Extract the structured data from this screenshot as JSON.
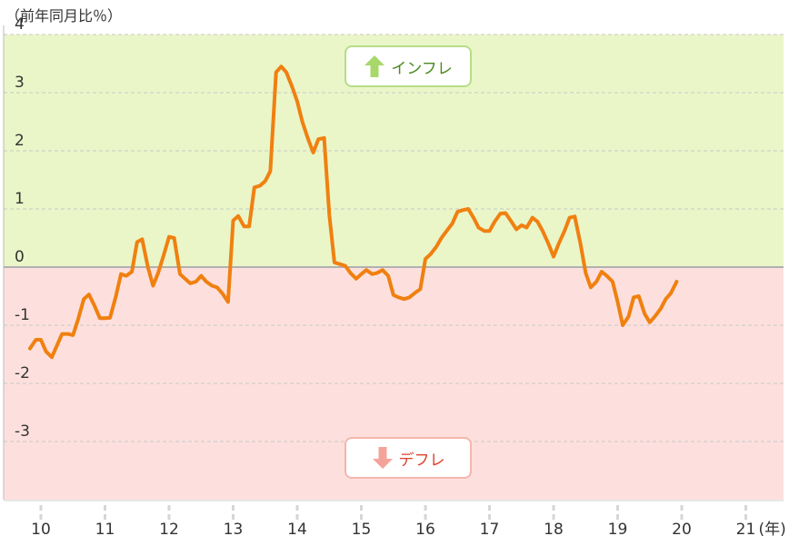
{
  "chart_data": {
    "type": "line",
    "unit_label": "（前年同月比％）",
    "year_unit": "(年)",
    "ylim": [
      -4,
      4
    ],
    "y_ticks": [
      4,
      3,
      2,
      1,
      0,
      -1,
      -2,
      -3
    ],
    "x_ticks": [
      {
        "x": 2010.0,
        "label": "10"
      },
      {
        "x": 2011.0,
        "label": "11"
      },
      {
        "x": 2012.0,
        "label": "12"
      },
      {
        "x": 2013.0,
        "label": "13"
      },
      {
        "x": 2014.0,
        "label": "14"
      },
      {
        "x": 2015.0,
        "label": "15"
      },
      {
        "x": 2016.0,
        "label": "16"
      },
      {
        "x": 2017.0,
        "label": "17"
      },
      {
        "x": 2018.0,
        "label": "18"
      },
      {
        "x": 2019.0,
        "label": "19"
      },
      {
        "x": 2020.0,
        "label": "20"
      },
      {
        "x": 2021.0,
        "label": "21"
      }
    ],
    "zones": {
      "inflation": {
        "label": "インフレ",
        "color": "#eaf6c8",
        "border": "#b7dd87",
        "arrow": "#a8d86c"
      },
      "deflation": {
        "label": "デフレ",
        "color": "#fde0dd",
        "border": "#f6b5ad",
        "arrow": "#f4a39a"
      }
    },
    "series": [
      {
        "color": "#f08010",
        "points": [
          [
            2009.83,
            -1.4
          ],
          [
            2009.92,
            -1.25
          ],
          [
            2010.0,
            -1.25
          ],
          [
            2010.08,
            -1.45
          ],
          [
            2010.17,
            -1.55
          ],
          [
            2010.25,
            -1.35
          ],
          [
            2010.33,
            -1.15
          ],
          [
            2010.42,
            -1.15
          ],
          [
            2010.5,
            -1.17
          ],
          [
            2010.58,
            -0.9
          ],
          [
            2010.67,
            -0.55
          ],
          [
            2010.75,
            -0.47
          ],
          [
            2010.83,
            -0.65
          ],
          [
            2010.92,
            -0.88
          ],
          [
            2011.0,
            -0.88
          ],
          [
            2011.08,
            -0.87
          ],
          [
            2011.17,
            -0.5
          ],
          [
            2011.25,
            -0.12
          ],
          [
            2011.33,
            -0.15
          ],
          [
            2011.42,
            -0.08
          ],
          [
            2011.5,
            0.43
          ],
          [
            2011.58,
            0.48
          ],
          [
            2011.67,
            0.0
          ],
          [
            2011.75,
            -0.32
          ],
          [
            2011.83,
            -0.1
          ],
          [
            2011.92,
            0.22
          ],
          [
            2012.0,
            0.52
          ],
          [
            2012.08,
            0.5
          ],
          [
            2012.17,
            -0.12
          ],
          [
            2012.25,
            -0.2
          ],
          [
            2012.33,
            -0.28
          ],
          [
            2012.42,
            -0.25
          ],
          [
            2012.5,
            -0.15
          ],
          [
            2012.58,
            -0.25
          ],
          [
            2012.67,
            -0.32
          ],
          [
            2012.75,
            -0.35
          ],
          [
            2012.83,
            -0.45
          ],
          [
            2012.92,
            -0.6
          ],
          [
            2013.0,
            0.8
          ],
          [
            2013.08,
            0.88
          ],
          [
            2013.17,
            0.7
          ],
          [
            2013.25,
            0.7
          ],
          [
            2013.33,
            1.37
          ],
          [
            2013.42,
            1.4
          ],
          [
            2013.5,
            1.48
          ],
          [
            2013.58,
            1.65
          ],
          [
            2013.67,
            3.35
          ],
          [
            2013.75,
            3.45
          ],
          [
            2013.83,
            3.35
          ],
          [
            2013.92,
            3.1
          ],
          [
            2014.0,
            2.85
          ],
          [
            2014.08,
            2.5
          ],
          [
            2014.17,
            2.2
          ],
          [
            2014.25,
            1.97
          ],
          [
            2014.33,
            2.2
          ],
          [
            2014.42,
            2.22
          ],
          [
            2014.5,
            0.9
          ],
          [
            2014.58,
            0.08
          ],
          [
            2014.67,
            0.05
          ],
          [
            2014.75,
            0.02
          ],
          [
            2014.83,
            -0.1
          ],
          [
            2014.92,
            -0.2
          ],
          [
            2015.0,
            -0.12
          ],
          [
            2015.08,
            -0.05
          ],
          [
            2015.17,
            -0.12
          ],
          [
            2015.25,
            -0.1
          ],
          [
            2015.33,
            -0.05
          ],
          [
            2015.42,
            -0.15
          ],
          [
            2015.5,
            -0.48
          ],
          [
            2015.58,
            -0.52
          ],
          [
            2015.67,
            -0.55
          ],
          [
            2015.75,
            -0.52
          ],
          [
            2015.83,
            -0.45
          ],
          [
            2015.92,
            -0.38
          ],
          [
            2016.0,
            0.14
          ],
          [
            2016.08,
            0.22
          ],
          [
            2016.17,
            0.35
          ],
          [
            2016.25,
            0.5
          ],
          [
            2016.33,
            0.62
          ],
          [
            2016.42,
            0.75
          ],
          [
            2016.5,
            0.95
          ],
          [
            2016.58,
            0.98
          ],
          [
            2016.67,
            1.0
          ],
          [
            2016.75,
            0.85
          ],
          [
            2016.83,
            0.68
          ],
          [
            2016.92,
            0.62
          ],
          [
            2017.0,
            0.62
          ],
          [
            2017.08,
            0.78
          ],
          [
            2017.17,
            0.92
          ],
          [
            2017.25,
            0.93
          ],
          [
            2017.33,
            0.8
          ],
          [
            2017.42,
            0.65
          ],
          [
            2017.5,
            0.72
          ],
          [
            2017.58,
            0.68
          ],
          [
            2017.67,
            0.85
          ],
          [
            2017.75,
            0.78
          ],
          [
            2017.83,
            0.62
          ],
          [
            2017.92,
            0.4
          ],
          [
            2018.0,
            0.18
          ],
          [
            2018.08,
            0.4
          ],
          [
            2018.17,
            0.62
          ],
          [
            2018.25,
            0.85
          ],
          [
            2018.33,
            0.87
          ],
          [
            2018.42,
            0.4
          ],
          [
            2018.5,
            -0.1
          ],
          [
            2018.58,
            -0.35
          ],
          [
            2018.67,
            -0.25
          ],
          [
            2018.75,
            -0.08
          ],
          [
            2018.83,
            -0.15
          ],
          [
            2018.92,
            -0.25
          ],
          [
            2019.0,
            -0.6
          ],
          [
            2019.08,
            -1.0
          ],
          [
            2019.17,
            -0.85
          ],
          [
            2019.25,
            -0.52
          ],
          [
            2019.33,
            -0.5
          ],
          [
            2019.42,
            -0.8
          ],
          [
            2019.5,
            -0.95
          ],
          [
            2019.58,
            -0.85
          ],
          [
            2019.67,
            -0.72
          ],
          [
            2019.75,
            -0.55
          ],
          [
            2019.83,
            -0.45
          ],
          [
            2019.92,
            -0.25
          ]
        ]
      }
    ]
  }
}
